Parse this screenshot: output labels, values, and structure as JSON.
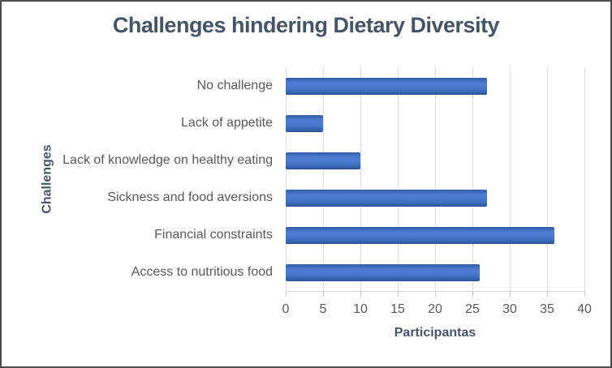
{
  "chart_data": {
    "type": "bar",
    "orientation": "horizontal",
    "title": "Challenges hindering Dietary Diversity",
    "xlabel": "Participantas",
    "ylabel": "Challenges",
    "categories": [
      "No challenge",
      "Lack of appetite",
      "Lack of knowledge on healthy eating",
      "Sickness and food aversions",
      "Financial constraints",
      "Access to nutritious food"
    ],
    "values": [
      27,
      5,
      10,
      27,
      36,
      26
    ],
    "xlim": [
      0,
      40
    ],
    "x_ticks": [
      0,
      5,
      10,
      15,
      20,
      25,
      30,
      35,
      40
    ],
    "grid": "vertical-gridlines",
    "legend": "none",
    "colors": {
      "bar_main": "#4472C4",
      "bar_edge_dark": "#2b5193",
      "gridline": "#dadde2",
      "title_text": "#44546A",
      "axis_title_text": "#44546A",
      "label_text": "#595959",
      "frame_border": "#4d4d4d",
      "background": "#ffffff"
    }
  }
}
